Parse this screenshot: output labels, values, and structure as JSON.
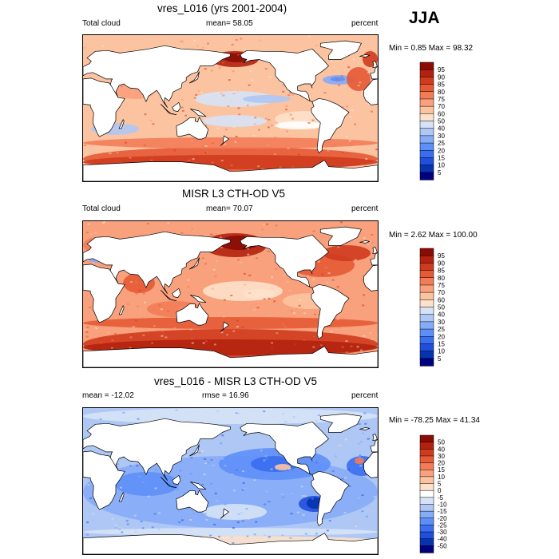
{
  "season": "JJA",
  "colors": {
    "obs_scale": [
      "#00007f",
      "#0633ae",
      "#1f4fdb",
      "#3a6ef1",
      "#5e8ff7",
      "#86abf7",
      "#aec7f5",
      "#d6e3f6",
      "#ffffff",
      "#fde1cb",
      "#fcc3a0",
      "#f9a07c",
      "#f37c58",
      "#e65a36",
      "#cf3b1e",
      "#b2220f",
      "#8a0c03"
    ],
    "diff_scale": [
      "#00007f",
      "#0633ae",
      "#1f4fdb",
      "#3a6ef1",
      "#5e8ff7",
      "#86abf7",
      "#aec7f5",
      "#d6e3f6",
      "#ffffff",
      "#fde1cb",
      "#fcc3a0",
      "#f9a07c",
      "#f37c58",
      "#e65a36",
      "#cf3b1e",
      "#b2220f",
      "#8a0c03"
    ]
  },
  "chart_data": [
    {
      "type": "heatmap",
      "title": "vres_L016 (yrs 2001-2004)",
      "variable": "Total cloud",
      "mean_label": "mean=  58.05",
      "units": "percent",
      "minmax": "Min =   0.85 Max =  98.32",
      "levels": [
        "95",
        "90",
        "85",
        "80",
        "75",
        "70",
        "60",
        "50",
        "40",
        "30",
        "25",
        "20",
        "15",
        "10",
        "5"
      ]
    },
    {
      "type": "heatmap",
      "title": "MISR L3 CTH-OD V5",
      "variable": "Total cloud",
      "mean_label": "mean=  70.07",
      "units": "percent",
      "minmax": "Min =   2.62 Max = 100.00",
      "levels": [
        "95",
        "90",
        "85",
        "80",
        "75",
        "70",
        "60",
        "50",
        "40",
        "30",
        "25",
        "20",
        "15",
        "10",
        "5"
      ]
    },
    {
      "type": "heatmap",
      "title": "vres_L016 - MISR L3 CTH-OD V5",
      "variable": "mean = -12.02",
      "mean_label": "rmse =  16.96",
      "units": "percent",
      "minmax": "Min = -78.25 Max =  41.34",
      "levels": [
        "50",
        "40",
        "30",
        "20",
        "15",
        "10",
        "5",
        "0",
        "-5",
        "-10",
        "-15",
        "-20",
        "-25",
        "-30",
        "-40",
        "-50"
      ]
    }
  ]
}
